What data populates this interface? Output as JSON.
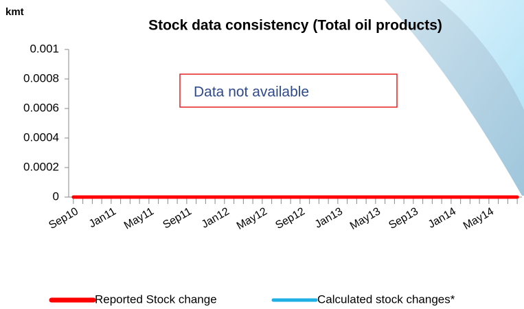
{
  "chart_data": {
    "type": "line",
    "title": "Stock data consistency (Total oil products)",
    "y_axis_label": "kmt",
    "annotation": "Data not available",
    "categories": [
      "Sep10",
      null,
      null,
      null,
      "Jan11",
      null,
      null,
      null,
      "May11",
      null,
      null,
      null,
      "Sep11",
      null,
      null,
      null,
      "Jan12",
      null,
      null,
      null,
      "May12",
      null,
      null,
      null,
      "Sep12",
      null,
      null,
      null,
      "Jan13",
      null,
      null,
      null,
      "May13",
      null,
      null,
      null,
      "Sep13",
      null,
      null,
      null,
      "Jan14",
      null,
      null,
      null,
      "May14",
      null,
      null,
      null
    ],
    "series": [
      {
        "name": "Calculated stock changes*",
        "color": "#1fb1e6",
        "values": [
          0,
          0,
          0,
          0,
          0,
          0,
          0,
          0,
          0,
          0,
          0,
          0,
          0,
          0,
          0,
          0,
          0,
          0,
          0,
          0,
          0,
          0,
          0,
          0,
          0,
          0,
          0,
          0,
          0,
          0,
          0,
          0,
          0,
          0,
          0,
          0,
          0,
          0,
          0,
          0,
          0,
          0,
          0,
          0,
          0,
          0,
          0,
          0
        ]
      },
      {
        "name": "Reported Stock change",
        "color": "#ff0000",
        "values": [
          0,
          0,
          0,
          0,
          0,
          0,
          0,
          0,
          0,
          0,
          0,
          0,
          0,
          0,
          0,
          0,
          0,
          0,
          0,
          0,
          0,
          0,
          0,
          0,
          0,
          0,
          0,
          0,
          0,
          0,
          0,
          0,
          0,
          0,
          0,
          0,
          0,
          0,
          0,
          0,
          0,
          0,
          0,
          0,
          0,
          0,
          0,
          0
        ]
      }
    ],
    "ylim": [
      0,
      0.001
    ],
    "yticks": [
      0,
      0.0002,
      0.0004,
      0.0006,
      0.0008,
      0.001
    ],
    "grid": false
  }
}
